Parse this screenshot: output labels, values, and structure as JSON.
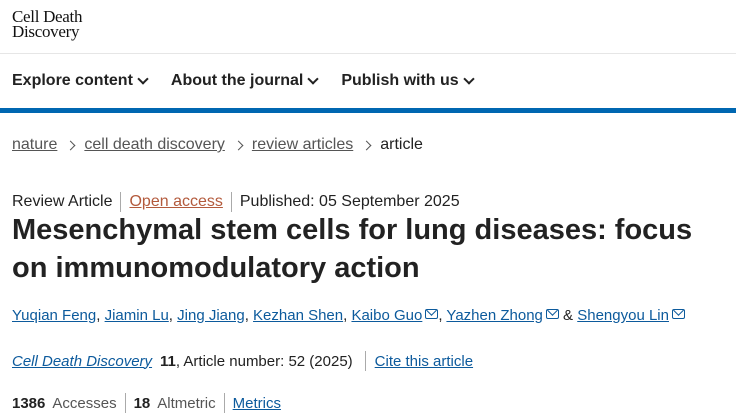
{
  "header": {
    "logo_line1": "Cell Death",
    "logo_line2": "Discovery"
  },
  "nav": [
    {
      "label": "Explore content"
    },
    {
      "label": "About the journal"
    },
    {
      "label": "Publish with us"
    }
  ],
  "breadcrumb": [
    "nature",
    "cell death discovery",
    "review articles",
    "article"
  ],
  "article": {
    "type": "Review Article",
    "access": "Open access",
    "published": "Published: 05 September 2025",
    "title": "Mesenchymal stem cells for lung diseases: focus on immunomodulatory action",
    "authors": [
      {
        "name": "Yuqian Feng",
        "mail": false
      },
      {
        "name": "Jiamin Lu",
        "mail": false
      },
      {
        "name": "Jing Jiang",
        "mail": false
      },
      {
        "name": "Kezhan Shen",
        "mail": false
      },
      {
        "name": "Kaibo Guo",
        "mail": true
      },
      {
        "name": "Yazhen Zhong",
        "mail": true
      },
      {
        "name": "Shengyou Lin",
        "mail": true
      }
    ],
    "journal": "Cell Death Discovery",
    "volume": "11",
    "article_number": ", Article number: 52 (2025)",
    "cite": "Cite this article"
  },
  "metrics": {
    "accesses": "1386",
    "accesses_label": "Accesses",
    "altmetric": "18",
    "altmetric_label": "Altmetric",
    "metrics_link": "Metrics"
  },
  "colors": {
    "accent": "#0067b1",
    "link": "#0c5a9c",
    "open_access": "#b35a3c"
  }
}
